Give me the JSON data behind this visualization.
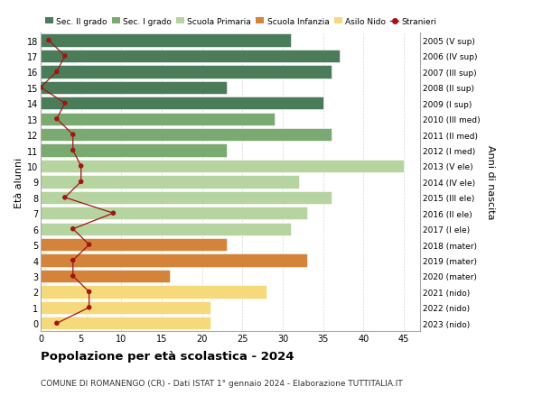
{
  "ages": [
    18,
    17,
    16,
    15,
    14,
    13,
    12,
    11,
    10,
    9,
    8,
    7,
    6,
    5,
    4,
    3,
    2,
    1,
    0
  ],
  "anni_nascita": [
    "2005 (V sup)",
    "2006 (IV sup)",
    "2007 (III sup)",
    "2008 (II sup)",
    "2009 (I sup)",
    "2010 (III med)",
    "2011 (II med)",
    "2012 (I med)",
    "2013 (V ele)",
    "2014 (IV ele)",
    "2015 (III ele)",
    "2016 (II ele)",
    "2017 (I ele)",
    "2018 (mater)",
    "2019 (mater)",
    "2020 (mater)",
    "2021 (nido)",
    "2022 (nido)",
    "2023 (nido)"
  ],
  "bar_values": [
    31,
    37,
    36,
    23,
    35,
    29,
    36,
    23,
    45,
    32,
    36,
    33,
    31,
    23,
    33,
    16,
    28,
    21,
    21
  ],
  "stranieri": [
    1,
    3,
    2,
    0,
    3,
    2,
    4,
    4,
    5,
    5,
    3,
    9,
    4,
    6,
    4,
    4,
    6,
    6,
    2
  ],
  "bar_colors": [
    "#4a7c59",
    "#4a7c59",
    "#4a7c59",
    "#4a7c59",
    "#4a7c59",
    "#7aaa72",
    "#7aaa72",
    "#7aaa72",
    "#b5d4a0",
    "#b5d4a0",
    "#b5d4a0",
    "#b5d4a0",
    "#b5d4a0",
    "#d4843a",
    "#d4843a",
    "#d4843a",
    "#f5d97a",
    "#f5d97a",
    "#f5d97a"
  ],
  "legend_labels": [
    "Sec. II grado",
    "Sec. I grado",
    "Scuola Primaria",
    "Scuola Infanzia",
    "Asilo Nido",
    "Stranieri"
  ],
  "legend_colors": [
    "#4a7c59",
    "#7aaa72",
    "#b5d4a0",
    "#d4843a",
    "#f5d97a",
    "#a31515"
  ],
  "title": "Popolazione per età scolastica - 2024",
  "subtitle": "COMUNE DI ROMANENGO (CR) - Dati ISTAT 1° gennaio 2024 - Elaborazione TUTTITALIA.IT",
  "ylabel_left": "Età alunni",
  "ylabel_right": "Anni di nascita",
  "dot_color": "#a31515",
  "line_color": "#a31515",
  "xlim": [
    0,
    47
  ],
  "xticks": [
    0,
    5,
    10,
    15,
    20,
    25,
    30,
    35,
    40,
    45
  ],
  "grid_color": "#cccccc"
}
